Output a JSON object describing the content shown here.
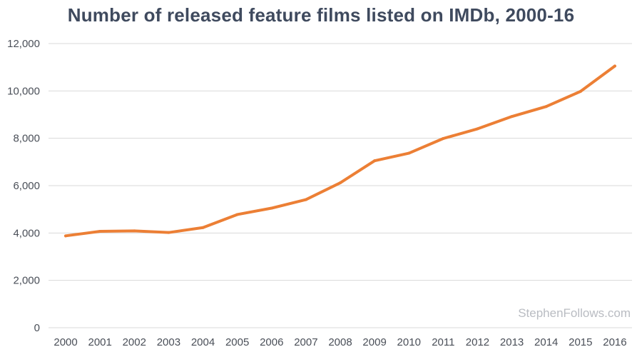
{
  "chart_data": {
    "type": "line",
    "title": "Number of released feature films listed on IMDb, 2000-16",
    "xlabel": "",
    "ylabel": "",
    "x": [
      "2000",
      "2001",
      "2002",
      "2003",
      "2004",
      "2005",
      "2006",
      "2007",
      "2008",
      "2009",
      "2010",
      "2011",
      "2012",
      "2013",
      "2014",
      "2015",
      "2016"
    ],
    "series": [
      {
        "name": "Released feature films",
        "values": [
          3880,
          4070,
          4090,
          4020,
          4230,
          4780,
          5050,
          5410,
          6120,
          7050,
          7370,
          7990,
          8400,
          8920,
          9340,
          9980,
          11050
        ]
      }
    ],
    "ylim": [
      0,
      12000
    ],
    "yticks": [
      0,
      2000,
      4000,
      6000,
      8000,
      10000,
      12000
    ],
    "ytick_labels": [
      "0",
      "2,000",
      "4,000",
      "6,000",
      "8,000",
      "10,000",
      "12,000"
    ],
    "grid": true,
    "legend": "none",
    "watermark": "StephenFollows.com",
    "colors": {
      "line": "#ec7f35",
      "grid": "#d9d9d9",
      "text": "#4a4f58",
      "title": "#3f4a5e"
    }
  }
}
